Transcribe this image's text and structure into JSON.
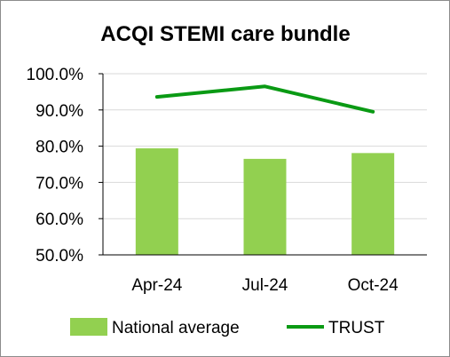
{
  "chart_data": {
    "type": "bar",
    "title": "ACQI STEMI care bundle",
    "xlabel": "",
    "ylabel": "",
    "categories": [
      "Apr-24",
      "Jul-24",
      "Oct-24"
    ],
    "ylim": [
      50,
      100
    ],
    "yticks": [
      "50.0%",
      "60.0%",
      "70.0%",
      "80.0%",
      "90.0%",
      "100.0%"
    ],
    "grid": true,
    "legend_position": "bottom",
    "series": [
      {
        "name": "National average",
        "kind": "bar",
        "color": "#92d050",
        "values": [
          79.4,
          76.5,
          78.1
        ]
      },
      {
        "name": "TRUST",
        "kind": "line",
        "color": "#0a9a14",
        "values": [
          93.6,
          96.5,
          89.5
        ]
      }
    ]
  }
}
